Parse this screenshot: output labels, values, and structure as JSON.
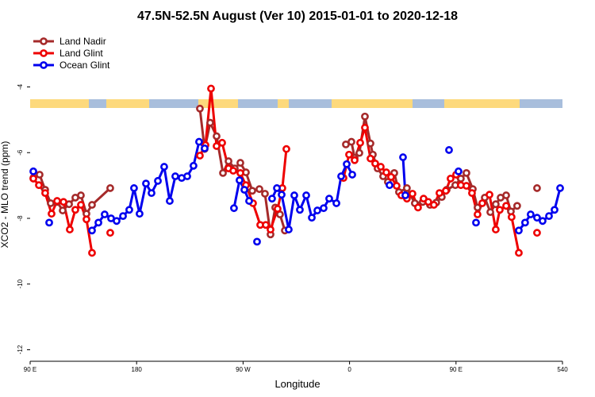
{
  "chart_data": {
    "type": "line",
    "title": "47.5N-52.5N August (Ver 10)   2015-01-01 to 2020-12-18",
    "xlabel": "Longitude",
    "ylabel": "XCO2 - MLO trend (ppm)",
    "xlim": [
      90,
      540
    ],
    "ylim": [
      -12.35,
      -2.2
    ],
    "xticks": [
      {
        "value": 90,
        "label": "90 E"
      },
      180,
      {
        "value": 270,
        "label": "90 W"
      },
      {
        "value": 360,
        "label": "0"
      },
      {
        "value": 450,
        "label": "90 E"
      },
      540
    ],
    "yticks": [
      -4,
      -6,
      -8,
      -10,
      -12
    ],
    "grid": false,
    "legend": "top-left",
    "series": [
      {
        "name": "Land Nadir",
        "color": "#a52a2a",
        "x": [
          92.7,
          98.0,
          102.7,
          107.4,
          112.8,
          117.5,
          122.9,
          128.2,
          132.9,
          137.6,
          142.3,
          157.7,
          null,
          233.5,
          237.5,
          242.2,
          247.6,
          253.0,
          257.7,
          263.0,
          267.7,
          272.4,
          277.8,
          283.8,
          288.5,
          293.2,
          297.2,
          301.2,
          305.3,
          null,
          356.9,
          361.6,
          364.3,
          368.3,
          373.0,
          377.7,
          379.7,
          383.7,
          388.4,
          392.4,
          397.8,
          401.8,
          408.5,
          415.2,
          421.9,
          428.0,
          433.3,
          438.0,
          442.1,
          449.4,
          454.1,
          458.8,
          464.2,
          468.2,
          474.3,
          479.0,
          483.6,
          487.7,
          492.4,
          496.4,
          501.7,
          null,
          518.5
        ],
        "values": [
          -6.77,
          -6.67,
          -7.13,
          -7.54,
          -7.5,
          -7.76,
          -7.57,
          -7.37,
          -7.3,
          -7.86,
          -7.59,
          -7.08,
          null,
          -4.66,
          -5.89,
          -5.09,
          -5.5,
          -6.62,
          -6.26,
          -6.48,
          -6.31,
          -6.6,
          -7.16,
          -7.11,
          -7.25,
          -8.49,
          -7.67,
          -7.88,
          -8.37,
          null,
          -5.75,
          -5.67,
          -6.16,
          -6.01,
          -4.9,
          -5.72,
          -6.06,
          -6.48,
          -6.72,
          -6.89,
          -6.62,
          -7.2,
          -7.08,
          -7.54,
          -7.5,
          -7.59,
          -7.52,
          -7.35,
          -7.13,
          -6.99,
          -6.79,
          -6.62,
          -7.11,
          -7.67,
          -7.37,
          -7.81,
          -7.57,
          -7.37,
          -7.3,
          -7.79,
          -7.62,
          null,
          -7.08
        ]
      },
      {
        "name": "Land Glint",
        "color": "#ee0000",
        "x": [
          92.7,
          97.4,
          102.7,
          108.1,
          112.8,
          118.2,
          123.5,
          128.2,
          132.9,
          137.6,
          142.3,
          null,
          157.7,
          null,
          233.5,
          238.2,
          242.9,
          247.6,
          252.3,
          257.7,
          261.7,
          267.7,
          272.4,
          278.4,
          284.5,
          289.2,
          293.2,
          299.2,
          303.2,
          306.6,
          null,
          354.9,
          359.6,
          364.3,
          369.0,
          373.0,
          377.7,
          381.7,
          386.4,
          391.1,
          395.1,
          399.8,
          403.8,
          408.5,
          413.2,
          417.9,
          422.6,
          426.6,
          431.3,
          436.0,
          441.4,
          445.4,
          450.1,
          454.1,
          458.8,
          463.5,
          468.2,
          472.2,
          478.3,
          483.6,
          487.0,
          492.4,
          497.0,
          503.1,
          null,
          518.5
        ],
        "values": [
          -6.79,
          -6.99,
          -7.23,
          -7.86,
          -7.47,
          -7.5,
          -8.34,
          -7.74,
          -7.59,
          -8.03,
          -9.05,
          null,
          -8.44,
          null,
          -6.09,
          -5.77,
          -4.05,
          -5.8,
          -5.7,
          -6.48,
          -6.55,
          -6.62,
          -6.99,
          -7.54,
          -8.2,
          -8.2,
          -8.34,
          -7.71,
          -7.08,
          -5.89,
          null,
          -6.77,
          -6.06,
          -6.23,
          -5.7,
          -5.24,
          -6.18,
          -6.33,
          -6.43,
          -6.6,
          -6.74,
          -7.01,
          -7.3,
          -7.4,
          -7.25,
          -7.67,
          -7.4,
          -7.5,
          -7.59,
          -7.23,
          -7.16,
          -6.79,
          -6.67,
          -6.99,
          -7.01,
          -7.23,
          -7.88,
          -7.54,
          -7.28,
          -8.34,
          -7.74,
          -7.62,
          -7.96,
          -9.05,
          null,
          -8.44
        ]
      },
      {
        "name": "Ocean Glint",
        "color": "#0000ee",
        "x": [
          92.7,
          null,
          106.1,
          null,
          142.3,
          147.7,
          153.0,
          158.4,
          163.1,
          168.5,
          173.8,
          177.8,
          182.5,
          187.9,
          192.6,
          198.0,
          203.3,
          208.0,
          212.7,
          218.1,
          222.8,
          228.1,
          232.8,
          237.5,
          null,
          262.3,
          267.0,
          271.1,
          275.1,
          null,
          281.8,
          null,
          294.5,
          298.6,
          302.6,
          308.6,
          313.3,
          318.0,
          323.4,
          328.1,
          332.8,
          338.1,
          342.8,
          348.9,
          352.9,
          357.6,
          362.3,
          null,
          393.8,
          null,
          405.2,
          407.2,
          null,
          444.1,
          null,
          452.1,
          null,
          466.9,
          null,
          503.1,
          508.4,
          513.1,
          518.5,
          523.2,
          528.6,
          533.3,
          538.0
        ],
        "values": [
          -6.57,
          null,
          -8.13,
          null,
          -8.37,
          -8.13,
          -7.88,
          -8.0,
          -8.08,
          -7.93,
          -7.74,
          -7.08,
          -7.86,
          -6.94,
          -7.23,
          -6.86,
          -6.43,
          -7.47,
          -6.72,
          -6.77,
          -6.72,
          -6.4,
          -5.67,
          -5.87,
          null,
          -7.69,
          -6.84,
          -7.13,
          -7.47,
          null,
          -8.71,
          null,
          -7.4,
          -7.08,
          -7.28,
          -8.34,
          -7.3,
          -7.74,
          -7.3,
          -7.98,
          -7.76,
          -7.69,
          -7.4,
          -7.54,
          -6.72,
          -6.35,
          -6.67,
          null,
          -6.99,
          null,
          -6.14,
          -7.3,
          null,
          -5.92,
          null,
          -6.57,
          null,
          -8.13,
          null,
          -8.37,
          -8.13,
          -7.88,
          -7.98,
          -8.08,
          -7.93,
          -7.74,
          -7.08
        ]
      }
    ]
  }
}
